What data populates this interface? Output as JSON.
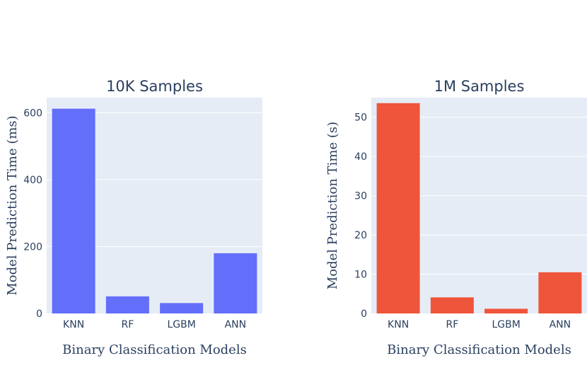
{
  "chart_data": [
    {
      "type": "bar",
      "title": "10K Samples",
      "xlabel": "Binary Classification Models",
      "ylabel": "Model Prediction Time (ms)",
      "categories": [
        "KNN",
        "RF",
        "LGBM",
        "ANN"
      ],
      "values": [
        612,
        51,
        31,
        180
      ],
      "ylim": [
        0,
        645
      ],
      "yticks": [
        0,
        200,
        400,
        600
      ],
      "color": "#636efa",
      "grid": true
    },
    {
      "type": "bar",
      "title": "1M Samples",
      "xlabel": "Binary Classification Models",
      "ylabel": "Model Prediction Time (s)",
      "categories": [
        "KNN",
        "RF",
        "LGBM",
        "ANN"
      ],
      "values": [
        53.6,
        4.1,
        1.2,
        10.5
      ],
      "ylim": [
        0,
        55
      ],
      "yticks": [
        0,
        10,
        20,
        30,
        40,
        50
      ],
      "color": "#ef553b",
      "grid": true
    }
  ],
  "style": {
    "plot_background": "#e5ecf6",
    "grid_color": "#ffffff",
    "text_color": "#2a3f5f"
  }
}
